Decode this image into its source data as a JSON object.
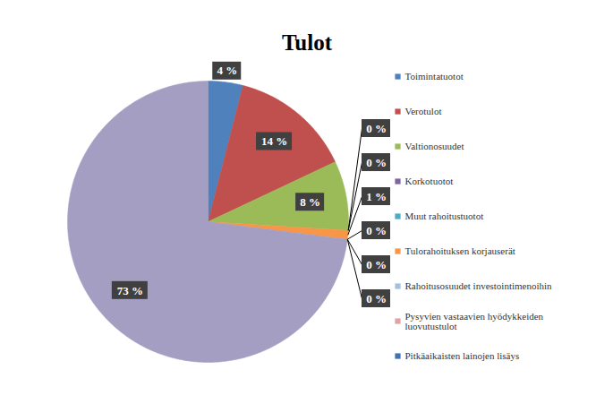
{
  "chart_data": {
    "type": "pie",
    "title": "Tulot",
    "categories": [
      "Toimintatuotot",
      "Verotulot",
      "Valtionosuudet",
      "Korkotuotot",
      "Muut rahoitustuotot",
      "Tulorahoituksen korjauserät",
      "Rahoitusosuudet investointimenoihin",
      "Pysyvien vastaavien hyödykkeiden luovutustulot",
      "Pitkäaikaisten lainojen lisäys",
      null
    ],
    "values": [
      4,
      14,
      8,
      0,
      0,
      1,
      0,
      0,
      0,
      73
    ],
    "value_labels": [
      "4 %",
      "14 %",
      "8 %",
      "0 %",
      "0 %",
      "1 %",
      "0 %",
      "0 %",
      "0 %",
      "73 %"
    ],
    "colors": [
      "#4f81bd",
      "#c0504d",
      "#9bbb59",
      "#8064a2",
      "#4bacc6",
      "#f79646",
      "#a5bfdf",
      "#e0a3a1",
      "#3f73b3",
      "#a49fc2"
    ],
    "data_labels": true,
    "legend": "right"
  }
}
